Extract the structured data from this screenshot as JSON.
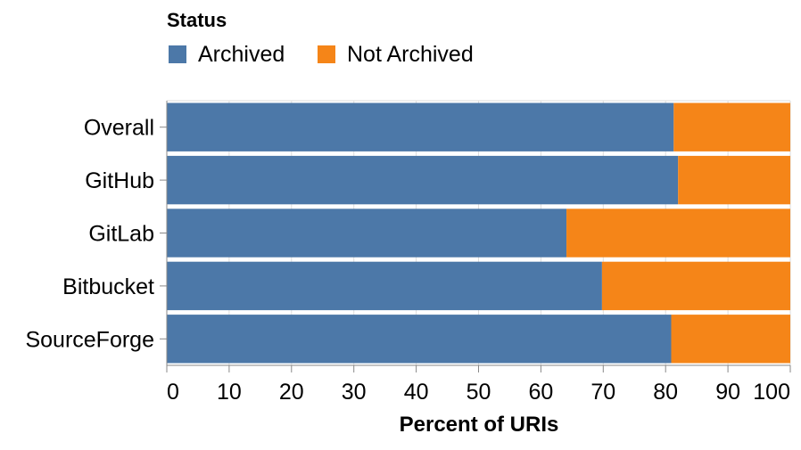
{
  "chart_data": {
    "type": "bar",
    "orientation": "horizontal",
    "stacked": true,
    "categories": [
      "Overall",
      "GitHub",
      "GitLab",
      "Bitbucket",
      "SourceForge"
    ],
    "series": [
      {
        "name": "Archived",
        "values": [
          81.3,
          82.0,
          64.1,
          69.8,
          80.9
        ],
        "color": "#4c78a8"
      },
      {
        "name": "Not Archived",
        "values": [
          18.7,
          18.0,
          35.9,
          30.2,
          19.1
        ],
        "color": "#f58518"
      }
    ],
    "xlabel": "Percent of URIs",
    "ylabel": "",
    "xlim": [
      0,
      100
    ],
    "xticks": [
      "0",
      "10",
      "20",
      "30",
      "40",
      "50",
      "60",
      "70",
      "80",
      "90",
      "100"
    ],
    "grid": true,
    "legend": {
      "title": "Status",
      "position": "top-left"
    }
  }
}
